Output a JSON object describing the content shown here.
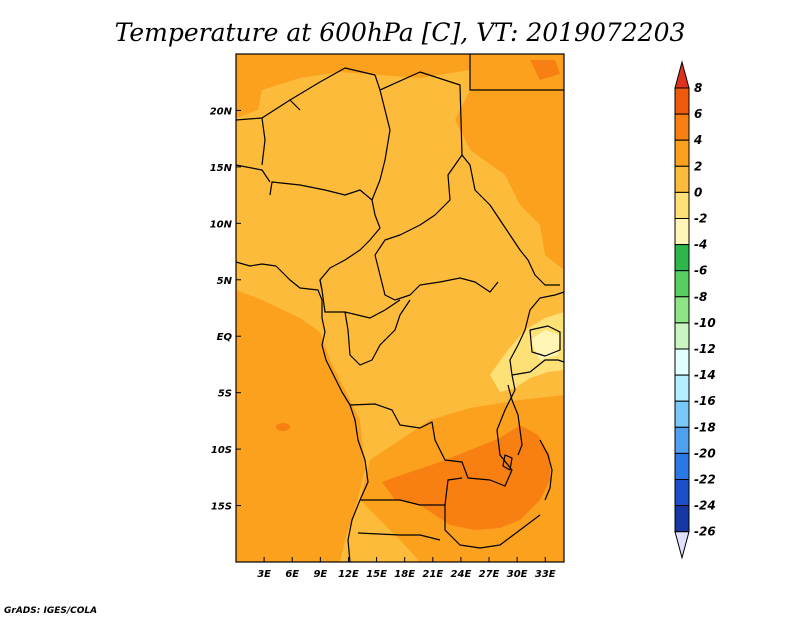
{
  "title": "Temperature at 600hPa [C], VT: 2019072203",
  "credit": "GrADS: IGES/COLA",
  "map": {
    "lon_range": [
      0,
      35
    ],
    "lat_range": [
      -20,
      25
    ],
    "lon_ticks": [
      {
        "value": 3,
        "label": "3E"
      },
      {
        "value": 6,
        "label": "6E"
      },
      {
        "value": 9,
        "label": "9E"
      },
      {
        "value": 12,
        "label": "12E"
      },
      {
        "value": 15,
        "label": "15E"
      },
      {
        "value": 18,
        "label": "18E"
      },
      {
        "value": 21,
        "label": "21E"
      },
      {
        "value": 24,
        "label": "24E"
      },
      {
        "value": 27,
        "label": "27E"
      },
      {
        "value": 30,
        "label": "30E"
      },
      {
        "value": 33,
        "label": "33E"
      }
    ],
    "lat_ticks": [
      {
        "value": 20,
        "label": "20N"
      },
      {
        "value": 15,
        "label": "15N"
      },
      {
        "value": 10,
        "label": "10N"
      },
      {
        "value": 5,
        "label": "5N"
      },
      {
        "value": 0,
        "label": "EQ"
      },
      {
        "value": -5,
        "label": "5S"
      },
      {
        "value": -10,
        "label": "10S"
      },
      {
        "value": -15,
        "label": "15S"
      }
    ]
  },
  "colorbar": {
    "labels": [
      "8",
      "6",
      "4",
      "2",
      "0",
      "-2",
      "-4",
      "-6",
      "-8",
      "-10",
      "-12",
      "-14",
      "-16",
      "-18",
      "-20",
      "-22",
      "-24",
      "-26"
    ],
    "colors": [
      "#e0301e",
      "#f05a0c",
      "#f88012",
      "#fba11e",
      "#fdbb3c",
      "#fde176",
      "#fff5b6",
      "#2db64a",
      "#57cf60",
      "#8de585",
      "#c8f5c0",
      "#e1ffff",
      "#b4efff",
      "#78c8f8",
      "#50a0f0",
      "#2a78e6",
      "#1d4fc9",
      "#1737a5",
      "#0e1b78",
      "#e0e0ff"
    ]
  },
  "colors": {
    "base": "#fdbb3c",
    "warm": "#fba11e",
    "hot": "#f88012",
    "cool": "#fde176",
    "vcool": "#fff5b6"
  }
}
